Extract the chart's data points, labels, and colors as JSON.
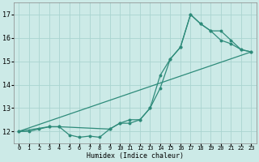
{
  "xlabel": "Humidex (Indice chaleur)",
  "bg_color": "#cceae7",
  "grid_color": "#aad4d0",
  "line_color": "#2e8b7a",
  "xlim": [
    -0.5,
    23.5
  ],
  "ylim": [
    11.5,
    17.5
  ],
  "xticks": [
    0,
    1,
    2,
    3,
    4,
    5,
    6,
    7,
    8,
    9,
    10,
    11,
    12,
    13,
    14,
    15,
    16,
    17,
    18,
    19,
    20,
    21,
    22,
    23
  ],
  "yticks": [
    12,
    13,
    14,
    15,
    16,
    17
  ],
  "line1_x": [
    0,
    1,
    2,
    3,
    4,
    5,
    6,
    7,
    8,
    9,
    10,
    11,
    12,
    13,
    14,
    15,
    16,
    17,
    18,
    19,
    20,
    21,
    22,
    23
  ],
  "line1_y": [
    12.0,
    12.0,
    12.1,
    12.2,
    12.2,
    11.85,
    11.75,
    11.8,
    11.75,
    12.1,
    12.35,
    12.35,
    12.5,
    13.0,
    13.85,
    15.1,
    15.6,
    17.0,
    16.6,
    16.3,
    15.9,
    15.75,
    15.5,
    15.4
  ],
  "line2_x": [
    0,
    3,
    4,
    9,
    10,
    11,
    12,
    13,
    14,
    15,
    16,
    17,
    18,
    19,
    20,
    21,
    22,
    23
  ],
  "line2_y": [
    12.0,
    12.2,
    12.2,
    12.1,
    12.35,
    12.5,
    12.5,
    13.0,
    14.4,
    15.1,
    15.6,
    17.0,
    16.6,
    16.3,
    16.3,
    15.9,
    15.5,
    15.4
  ],
  "line3_x": [
    0,
    23
  ],
  "line3_y": [
    12.0,
    15.4
  ]
}
